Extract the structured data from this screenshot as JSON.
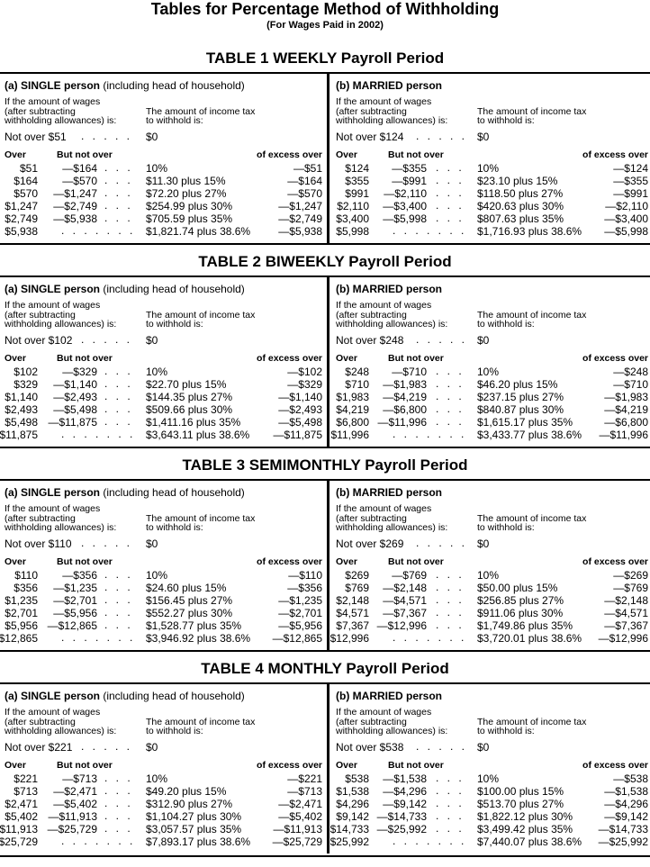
{
  "title": "Tables for Percentage Method of Withholding",
  "subtitle": "(For Wages Paid in 2002)",
  "labels": {
    "wages_line1": "If the amount of wages",
    "wages_line2": "(after subtracting",
    "wages_line3": "withholding allowances) is:",
    "tax_line1": "The amount of income tax",
    "tax_line2": "to withhold is:",
    "col_over": "Over",
    "col_but_not_over": "But not over",
    "col_excess": "of excess over",
    "leader_short": ". . . . .",
    "leader_mid": ". . .",
    "leader_long": ". . . . . . ."
  },
  "tables": [
    {
      "heading": "TABLE 1  WEEKLY Payroll Period",
      "single": {
        "header_bold": "(a) SINGLE person",
        "header_rest": " (including head of household)",
        "not_over": "Not over $51",
        "not_over_tax": "$0",
        "rows": [
          [
            "$51",
            "—$164",
            "10%",
            "—$51"
          ],
          [
            "$164",
            "—$570",
            "$11.30 plus 15%",
            "—$164"
          ],
          [
            "$570",
            "—$1,247",
            "$72.20 plus 27%",
            "—$570"
          ],
          [
            "$1,247",
            "—$2,749",
            "$254.99 plus 30%",
            "—$1,247"
          ],
          [
            "$2,749",
            "—$5,938",
            "$705.59 plus 35%",
            "—$2,749"
          ],
          [
            "$5,938",
            "",
            "$1,821.74 plus 38.6%",
            "—$5,938"
          ]
        ]
      },
      "married": {
        "header_bold": "(b) MARRIED person",
        "header_rest": "",
        "not_over": "Not over $124",
        "not_over_tax": "$0",
        "rows": [
          [
            "$124",
            "—$355",
            "10%",
            "—$124"
          ],
          [
            "$355",
            "—$991",
            "$23.10 plus 15%",
            "—$355"
          ],
          [
            "$991",
            "—$2,110",
            "$118.50 plus 27%",
            "—$991"
          ],
          [
            "$2,110",
            "—$3,400",
            "$420.63 plus 30%",
            "—$2,110"
          ],
          [
            "$3,400",
            "—$5,998",
            "$807.63 plus 35%",
            "—$3,400"
          ],
          [
            "$5,998",
            "",
            "$1,716.93 plus 38.6%",
            "—$5,998"
          ]
        ]
      }
    },
    {
      "heading": "TABLE 2  BIWEEKLY Payroll Period",
      "single": {
        "header_bold": "(a) SINGLE person",
        "header_rest": " (including head of household)",
        "not_over": "Not over $102",
        "not_over_tax": "$0",
        "rows": [
          [
            "$102",
            "—$329",
            "10%",
            "—$102"
          ],
          [
            "$329",
            "—$1,140",
            "$22.70 plus 15%",
            "—$329"
          ],
          [
            "$1,140",
            "—$2,493",
            "$144.35 plus 27%",
            "—$1,140"
          ],
          [
            "$2,493",
            "—$5,498",
            "$509.66 plus 30%",
            "—$2,493"
          ],
          [
            "$5,498",
            "—$11,875",
            "$1,411.16 plus 35%",
            "—$5,498"
          ],
          [
            "$11,875",
            "",
            "$3,643.11 plus 38.6%",
            "—$11,875"
          ]
        ]
      },
      "married": {
        "header_bold": "(b) MARRIED person",
        "header_rest": "",
        "not_over": "Not over $248",
        "not_over_tax": "$0",
        "rows": [
          [
            "$248",
            "—$710",
            "10%",
            "—$248"
          ],
          [
            "$710",
            "—$1,983",
            "$46.20 plus 15%",
            "—$710"
          ],
          [
            "$1,983",
            "—$4,219",
            "$237.15 plus 27%",
            "—$1,983"
          ],
          [
            "$4,219",
            "—$6,800",
            "$840.87 plus 30%",
            "—$4,219"
          ],
          [
            "$6,800",
            "—$11,996",
            "$1,615.17 plus 35%",
            "—$6,800"
          ],
          [
            "$11,996",
            "",
            "$3,433.77 plus 38.6%",
            "—$11,996"
          ]
        ]
      }
    },
    {
      "heading": "TABLE 3  SEMIMONTHLY Payroll Period",
      "single": {
        "header_bold": "(a) SINGLE person",
        "header_rest": " (including head of household)",
        "not_over": "Not over $110",
        "not_over_tax": "$0",
        "rows": [
          [
            "$110",
            "—$356",
            "10%",
            "—$110"
          ],
          [
            "$356",
            "—$1,235",
            "$24.60 plus 15%",
            "—$356"
          ],
          [
            "$1,235",
            "—$2,701",
            "$156.45 plus 27%",
            "—$1,235"
          ],
          [
            "$2,701",
            "—$5,956",
            "$552.27 plus 30%",
            "—$2,701"
          ],
          [
            "$5,956",
            "—$12,865",
            "$1,528.77 plus 35%",
            "—$5,956"
          ],
          [
            "$12,865",
            "",
            "$3,946.92 plus 38.6%",
            "—$12,865"
          ]
        ]
      },
      "married": {
        "header_bold": "(b) MARRIED person",
        "header_rest": "",
        "not_over": "Not over $269",
        "not_over_tax": "$0",
        "rows": [
          [
            "$269",
            "—$769",
            "10%",
            "—$269"
          ],
          [
            "$769",
            "—$2,148",
            "$50.00 plus 15%",
            "—$769"
          ],
          [
            "$2,148",
            "—$4,571",
            "$256.85 plus 27%",
            "—$2,148"
          ],
          [
            "$4,571",
            "—$7,367",
            "$911.06 plus 30%",
            "—$4,571"
          ],
          [
            "$7,367",
            "—$12,996",
            "$1,749.86 plus 35%",
            "—$7,367"
          ],
          [
            "$12,996",
            "",
            "$3,720.01 plus 38.6%",
            "—$12,996"
          ]
        ]
      }
    },
    {
      "heading": "TABLE 4  MONTHLY Payroll Period",
      "single": {
        "header_bold": "(a) SINGLE person",
        "header_rest": " (including head of household)",
        "not_over": "Not over $221",
        "not_over_tax": "$0",
        "rows": [
          [
            "$221",
            "—$713",
            "10%",
            "—$221"
          ],
          [
            "$713",
            "—$2,471",
            "$49.20 plus 15%",
            "—$713"
          ],
          [
            "$2,471",
            "—$5,402",
            "$312.90 plus 27%",
            "—$2,471"
          ],
          [
            "$5,402",
            "—$11,913",
            "$1,104.27 plus 30%",
            "—$5,402"
          ],
          [
            "$11,913",
            "—$25,729",
            "$3,057.57 plus 35%",
            "—$11,913"
          ],
          [
            "$25,729",
            "",
            "$7,893.17 plus 38.6%",
            "—$25,729"
          ]
        ]
      },
      "married": {
        "header_bold": "(b) MARRIED person",
        "header_rest": "",
        "not_over": "Not over $538",
        "not_over_tax": "$0",
        "rows": [
          [
            "$538",
            "—$1,538",
            "10%",
            "—$538"
          ],
          [
            "$1,538",
            "—$4,296",
            "$100.00 plus 15%",
            "—$1,538"
          ],
          [
            "$4,296",
            "—$9,142",
            "$513.70 plus 27%",
            "—$4,296"
          ],
          [
            "$9,142",
            "—$14,733",
            "$1,822.12 plus 30%",
            "—$9,142"
          ],
          [
            "$14,733",
            "—$25,992",
            "$3,499.42 plus 35%",
            "—$14,733"
          ],
          [
            "$25,992",
            "",
            "$7,440.07 plus 38.6%",
            "—$25,992"
          ]
        ]
      }
    }
  ]
}
